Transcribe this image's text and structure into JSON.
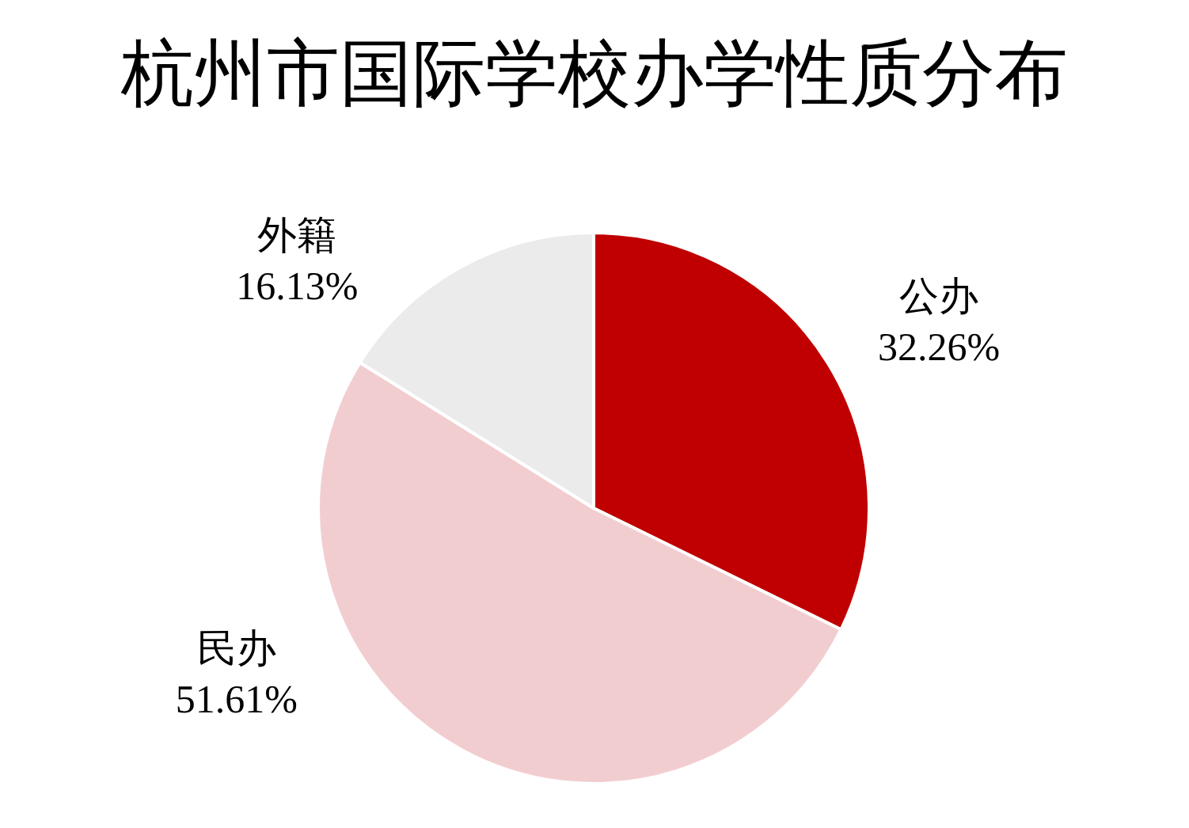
{
  "chart_data": {
    "type": "pie",
    "title": "杭州市国际学校办学性质分布",
    "categories": [
      "公办",
      "民办",
      "外籍"
    ],
    "values": [
      32.26,
      51.61,
      16.13
    ],
    "colors": [
      "#c00000",
      "#f2cdd0",
      "#ebebeb"
    ],
    "value_labels": [
      "32.26%",
      "51.61%",
      "16.13%"
    ]
  }
}
